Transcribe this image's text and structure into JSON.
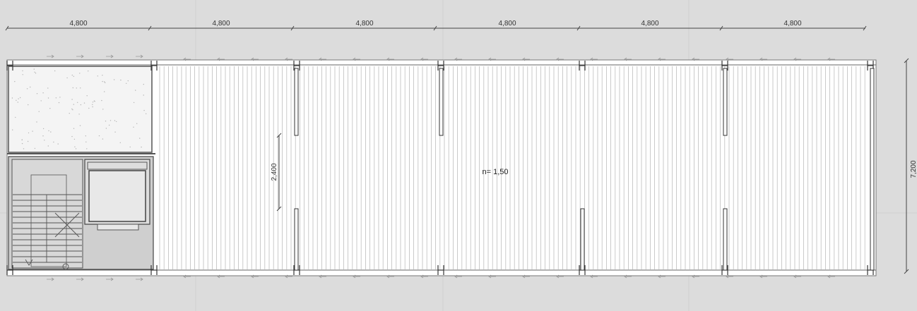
{
  "dimensions": {
    "bay_labels": [
      "4,800",
      "4,800",
      "4,800",
      "4,800",
      "4,800",
      "4,800"
    ],
    "depth_label": "7,200",
    "opening_label": "2,400"
  },
  "annotation": {
    "ratio_label": "n= 1,50"
  },
  "colors": {
    "background": "#dcdcdc",
    "slab": "#ffffff",
    "line": "#555555",
    "core_fill": "#cfcfcf",
    "light_well": "#f4f4f4"
  }
}
